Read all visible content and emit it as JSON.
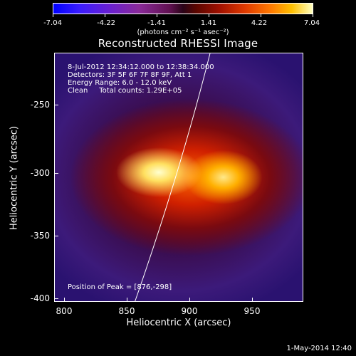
{
  "colorbar": {
    "tick_labels": [
      "-7.04",
      "-4.22",
      "-1.41",
      "1.41",
      "4.22",
      "7.04"
    ],
    "units": "(photons cm⁻² s⁻¹ asec⁻²)"
  },
  "title": "Reconstructed RHESSI Image",
  "info": {
    "time_range": "8-Jul-2012 12:34:12.000 to 12:38:34.000",
    "detectors": "Detectors: 3F 5F 6F 7F 8F 9F, Att 1",
    "energy": "Energy Range: 6.0 - 12.0 keV",
    "clean": "Clean     Total counts: 1.29E+05",
    "peak": "Position of Peak = [876,-298]"
  },
  "axes": {
    "xlabel": "Heliocentric X (arcsec)",
    "ylabel": "Heliocentric Y (arcsec)",
    "x_ticks": [
      "800",
      "850",
      "900",
      "950"
    ],
    "y_ticks": [
      "-250",
      "-300",
      "-350",
      "-400"
    ]
  },
  "footer": "1-May-2014 12:40",
  "colors": {
    "background": "#000000",
    "foreground": "#ffffff"
  }
}
